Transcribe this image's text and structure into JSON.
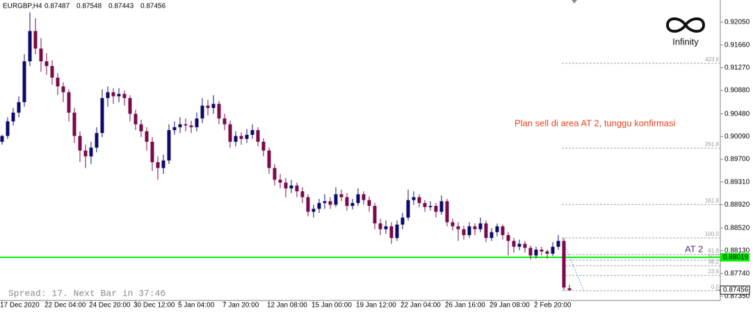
{
  "chart_data": {
    "type": "candlestick",
    "quote": {
      "symbol": "EURGBP,H4",
      "values": [
        0.87487,
        0.87548,
        0.87443,
        0.87456
      ]
    },
    "status": "Spread: 17. Next Bar in 37:46",
    "annotation": "Plan sell di area AT 2, tunggu konfirmasi",
    "logo": "Infinity",
    "up_color": "#0b0b6b",
    "down_color": "#7a0a4a",
    "ylim": [
      0.87278,
      0.92432
    ],
    "yticks": [
      {
        "value": 0.9205,
        "label": "0.92050"
      },
      {
        "value": 0.9166,
        "label": "0.91660"
      },
      {
        "value": 0.9127,
        "label": "0.91270"
      },
      {
        "value": 0.9088,
        "label": "0.90880"
      },
      {
        "value": 0.9048,
        "label": "0.90480"
      },
      {
        "value": 0.9009,
        "label": "0.90090"
      },
      {
        "value": 0.897,
        "label": "0.89700"
      },
      {
        "value": 0.8931,
        "label": "0.89310"
      },
      {
        "value": 0.8892,
        "label": "0.88920"
      },
      {
        "value": 0.8852,
        "label": "0.88520"
      },
      {
        "value": 0.8813,
        "label": "0.88130"
      },
      {
        "value": 0.8774,
        "label": "0.87740"
      },
      {
        "value": 0.8735,
        "label": "0.87350"
      }
    ],
    "xticks": [
      {
        "value": 0,
        "label": "17 Dec 2020"
      },
      {
        "value": 8,
        "label": "22 Dec 04:00"
      },
      {
        "value": 16,
        "label": "24 Dec 20:00"
      },
      {
        "value": 24,
        "label": "30 Dec 12:00"
      },
      {
        "value": 32,
        "label": "5 Jan 04:00"
      },
      {
        "value": 40,
        "label": "7 Jan 20:00"
      },
      {
        "value": 48,
        "label": "12 Jan 08:00"
      },
      {
        "value": 56,
        "label": "15 Jan 00:00"
      },
      {
        "value": 64,
        "label": "19 Jan 12:00"
      },
      {
        "value": 72,
        "label": "22 Jan 04:00"
      },
      {
        "value": 80,
        "label": "26 Jan 16:00"
      },
      {
        "value": 88,
        "label": "29 Jan 08:00"
      },
      {
        "value": 96,
        "label": "2 Feb 20:00"
      }
    ],
    "hline": {
      "value": 0.88019,
      "label": "AT 2",
      "color": "#00ee00"
    },
    "fib_levels": [
      {
        "label": "423.6",
        "price": 0.91346
      },
      {
        "label": "261.8",
        "price": 0.89891
      },
      {
        "label": "161.8",
        "price": 0.88925
      },
      {
        "label": "100.0",
        "price": 0.88352
      },
      {
        "label": "61.8",
        "price": 0.88066
      },
      {
        "label": "50.0",
        "price": 0.8797
      },
      {
        "label": "38.2",
        "price": 0.87875
      },
      {
        "label": "23.6",
        "price": 0.87708
      },
      {
        "label": "0.0",
        "price": 0.87446
      }
    ],
    "candles": [
      [
        0.9,
        0.9012,
        0.8995,
        0.901
      ],
      [
        0.901,
        0.9042,
        0.9005,
        0.9035
      ],
      [
        0.9035,
        0.9058,
        0.9028,
        0.905
      ],
      [
        0.905,
        0.9078,
        0.9042,
        0.9068
      ],
      [
        0.9068,
        0.915,
        0.906,
        0.9138
      ],
      [
        0.9138,
        0.9222,
        0.913,
        0.919
      ],
      [
        0.919,
        0.9212,
        0.915,
        0.916
      ],
      [
        0.916,
        0.9178,
        0.912,
        0.9138
      ],
      [
        0.9138,
        0.9152,
        0.9115,
        0.913
      ],
      [
        0.913,
        0.914,
        0.9098,
        0.911
      ],
      [
        0.911,
        0.9118,
        0.908,
        0.9095
      ],
      [
        0.9095,
        0.9102,
        0.9068,
        0.9085
      ],
      [
        0.9085,
        0.909,
        0.9035,
        0.905
      ],
      [
        0.905,
        0.9058,
        0.8998,
        0.901
      ],
      [
        0.901,
        0.9018,
        0.8965,
        0.8985
      ],
      [
        0.8985,
        0.8995,
        0.8955,
        0.8975
      ],
      [
        0.8975,
        0.9,
        0.8962,
        0.899
      ],
      [
        0.899,
        0.9025,
        0.8982,
        0.9015
      ],
      [
        0.9015,
        0.909,
        0.9008,
        0.9075
      ],
      [
        0.9075,
        0.9095,
        0.906,
        0.9085
      ],
      [
        0.9085,
        0.9092,
        0.9065,
        0.9078
      ],
      [
        0.9078,
        0.9092,
        0.9068,
        0.9082
      ],
      [
        0.9082,
        0.9088,
        0.9062,
        0.9075
      ],
      [
        0.9075,
        0.908,
        0.9035,
        0.9048
      ],
      [
        0.9048,
        0.9055,
        0.902,
        0.903
      ],
      [
        0.903,
        0.9038,
        0.9008,
        0.9018
      ],
      [
        0.9018,
        0.9025,
        0.8985,
        0.9
      ],
      [
        0.9,
        0.9008,
        0.895,
        0.8965
      ],
      [
        0.8965,
        0.8975,
        0.8935,
        0.8955
      ],
      [
        0.8955,
        0.8978,
        0.8945,
        0.8968
      ],
      [
        0.8968,
        0.903,
        0.8962,
        0.902
      ],
      [
        0.902,
        0.9035,
        0.9012,
        0.9025
      ],
      [
        0.9025,
        0.9042,
        0.9015,
        0.903
      ],
      [
        0.903,
        0.904,
        0.9018,
        0.9028
      ],
      [
        0.9028,
        0.9036,
        0.9015,
        0.9025
      ],
      [
        0.9025,
        0.905,
        0.9018,
        0.904
      ],
      [
        0.904,
        0.9075,
        0.9032,
        0.9062
      ],
      [
        0.9062,
        0.9072,
        0.9045,
        0.9058
      ],
      [
        0.9058,
        0.908,
        0.9048,
        0.9065
      ],
      [
        0.9065,
        0.907,
        0.903,
        0.904
      ],
      [
        0.904,
        0.9048,
        0.902,
        0.903
      ],
      [
        0.903,
        0.9036,
        0.899,
        0.9
      ],
      [
        0.9,
        0.9018,
        0.8992,
        0.901
      ],
      [
        0.901,
        0.9016,
        0.8995,
        0.9005
      ],
      [
        0.9005,
        0.9022,
        0.8998,
        0.9012
      ],
      [
        0.9012,
        0.903,
        0.9005,
        0.902
      ],
      [
        0.902,
        0.9025,
        0.8992,
        0.9
      ],
      [
        0.9,
        0.9006,
        0.8975,
        0.8985
      ],
      [
        0.8985,
        0.899,
        0.8945,
        0.8955
      ],
      [
        0.8955,
        0.8962,
        0.8925,
        0.8935
      ],
      [
        0.8935,
        0.8945,
        0.892,
        0.893
      ],
      [
        0.893,
        0.8938,
        0.8905,
        0.892
      ],
      [
        0.892,
        0.8935,
        0.8912,
        0.8925
      ],
      [
        0.8925,
        0.893,
        0.8905,
        0.8915
      ],
      [
        0.8915,
        0.8922,
        0.8895,
        0.8905
      ],
      [
        0.8905,
        0.891,
        0.8872,
        0.888
      ],
      [
        0.888,
        0.8892,
        0.887,
        0.8885
      ],
      [
        0.8885,
        0.8902,
        0.8878,
        0.8895
      ],
      [
        0.8895,
        0.891,
        0.8885,
        0.8898
      ],
      [
        0.8898,
        0.8905,
        0.8885,
        0.8892
      ],
      [
        0.8892,
        0.8922,
        0.8888,
        0.891
      ],
      [
        0.891,
        0.8918,
        0.8898,
        0.8905
      ],
      [
        0.8905,
        0.8912,
        0.8882,
        0.889
      ],
      [
        0.889,
        0.8902,
        0.8884,
        0.8895
      ],
      [
        0.8895,
        0.892,
        0.889,
        0.891
      ],
      [
        0.891,
        0.8915,
        0.8892,
        0.89
      ],
      [
        0.89,
        0.8906,
        0.888,
        0.889
      ],
      [
        0.889,
        0.8895,
        0.885,
        0.886
      ],
      [
        0.886,
        0.8868,
        0.884,
        0.885
      ],
      [
        0.885,
        0.8865,
        0.8842,
        0.8855
      ],
      [
        0.8855,
        0.8862,
        0.8825,
        0.8835
      ],
      [
        0.8835,
        0.8865,
        0.883,
        0.8858
      ],
      [
        0.8858,
        0.8878,
        0.885,
        0.887
      ],
      [
        0.887,
        0.8918,
        0.8865,
        0.89
      ],
      [
        0.89,
        0.8915,
        0.8892,
        0.8905
      ],
      [
        0.8905,
        0.891,
        0.8888,
        0.8895
      ],
      [
        0.8895,
        0.89,
        0.888,
        0.8888
      ],
      [
        0.8888,
        0.8898,
        0.8882,
        0.889
      ],
      [
        0.889,
        0.8895,
        0.887,
        0.888
      ],
      [
        0.888,
        0.8908,
        0.8875,
        0.8898
      ],
      [
        0.8898,
        0.8902,
        0.8855,
        0.8862
      ],
      [
        0.8862,
        0.8868,
        0.8848,
        0.8855
      ],
      [
        0.8855,
        0.8862,
        0.883,
        0.885
      ],
      [
        0.885,
        0.8856,
        0.8832,
        0.884
      ],
      [
        0.884,
        0.8862,
        0.8835,
        0.8855
      ],
      [
        0.8855,
        0.886,
        0.884,
        0.885
      ],
      [
        0.885,
        0.887,
        0.8845,
        0.886
      ],
      [
        0.886,
        0.8865,
        0.8828,
        0.8835
      ],
      [
        0.8835,
        0.8852,
        0.883,
        0.8845
      ],
      [
        0.8845,
        0.886,
        0.8838,
        0.8855
      ],
      [
        0.8855,
        0.8858,
        0.8832,
        0.884
      ],
      [
        0.884,
        0.8845,
        0.8805,
        0.883
      ],
      [
        0.883,
        0.8835,
        0.881,
        0.882
      ],
      [
        0.882,
        0.8832,
        0.8814,
        0.8825
      ],
      [
        0.8825,
        0.883,
        0.881,
        0.8818
      ],
      [
        0.8818,
        0.8822,
        0.8798,
        0.8805
      ],
      [
        0.8805,
        0.882,
        0.88,
        0.8815
      ],
      [
        0.8815,
        0.882,
        0.8805,
        0.8812
      ],
      [
        0.8812,
        0.8815,
        0.88,
        0.8808
      ],
      [
        0.8808,
        0.8828,
        0.8804,
        0.882
      ],
      [
        0.882,
        0.884,
        0.8815,
        0.883
      ],
      [
        0.883,
        0.8835,
        0.8745,
        0.875
      ],
      [
        0.87487,
        0.87548,
        0.87443,
        0.87456
      ]
    ]
  }
}
